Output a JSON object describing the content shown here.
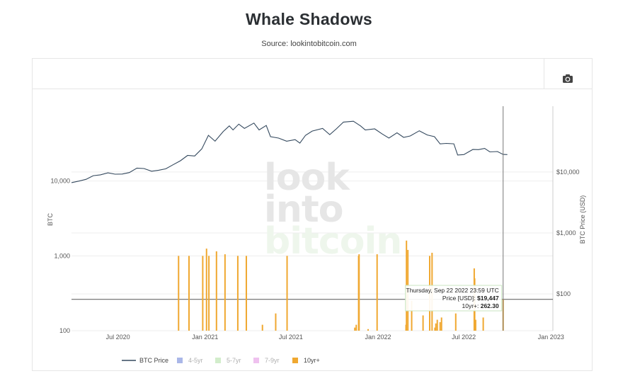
{
  "header": {
    "title": "Whale Shadows",
    "subtitle": "Source: lookintobitcoin.com"
  },
  "toolbar": {
    "camera_icon": "camera-icon"
  },
  "watermark": {
    "line1": "look",
    "line2": "into",
    "line3": "bitcoin"
  },
  "chart_data": {
    "type": "line+bar",
    "x_axis": {
      "type": "date",
      "range": [
        "2020-03-25",
        "2023-01-05"
      ],
      "ticks": [
        {
          "date": "2020-07-01",
          "label": "Jul 2020"
        },
        {
          "date": "2021-01-01",
          "label": "Jan 2021"
        },
        {
          "date": "2021-07-01",
          "label": "Jul 2021"
        },
        {
          "date": "2022-01-01",
          "label": "Jan 2022"
        },
        {
          "date": "2022-07-01",
          "label": "Jul 2022"
        },
        {
          "date": "2023-01-01",
          "label": "Jan 2023"
        }
      ]
    },
    "y_axis_left": {
      "title": "BTC",
      "scale": "log",
      "range": [
        100,
        100000
      ],
      "ticks": [
        {
          "value": 100,
          "label": "100"
        },
        {
          "value": 1000,
          "label": "1,000"
        },
        {
          "value": 10000,
          "label": "10,000"
        }
      ]
    },
    "y_axis_right": {
      "title": "BTC Price (USD)",
      "scale": "log",
      "range": [
        25,
        120000
      ],
      "ticks": [
        {
          "value": 100,
          "label": "$100"
        },
        {
          "value": 1000,
          "label": "$1,000"
        },
        {
          "value": 10000,
          "label": "$10,000"
        }
      ]
    },
    "series_price": {
      "name": "BTC Price",
      "color": "#34495e",
      "points": [
        [
          "2020-03-25",
          6700
        ],
        [
          "2020-04-10",
          7100
        ],
        [
          "2020-04-25",
          7600
        ],
        [
          "2020-05-10",
          8700
        ],
        [
          "2020-05-25",
          9000
        ],
        [
          "2020-06-10",
          9700
        ],
        [
          "2020-06-25",
          9200
        ],
        [
          "2020-07-10",
          9250
        ],
        [
          "2020-07-25",
          9800
        ],
        [
          "2020-08-10",
          11600
        ],
        [
          "2020-08-25",
          11400
        ],
        [
          "2020-09-10",
          10300
        ],
        [
          "2020-09-25",
          10700
        ],
        [
          "2020-10-10",
          11300
        ],
        [
          "2020-10-25",
          13100
        ],
        [
          "2020-11-10",
          15300
        ],
        [
          "2020-11-25",
          18700
        ],
        [
          "2020-12-10",
          18300
        ],
        [
          "2020-12-25",
          24000
        ],
        [
          "2021-01-08",
          40000
        ],
        [
          "2021-01-22",
          32000
        ],
        [
          "2021-02-08",
          46000
        ],
        [
          "2021-02-21",
          57000
        ],
        [
          "2021-03-01",
          49000
        ],
        [
          "2021-03-13",
          61000
        ],
        [
          "2021-03-25",
          52000
        ],
        [
          "2021-04-14",
          63500
        ],
        [
          "2021-04-25",
          49000
        ],
        [
          "2021-05-10",
          58000
        ],
        [
          "2021-05-19",
          38000
        ],
        [
          "2021-06-05",
          36000
        ],
        [
          "2021-06-22",
          32000
        ],
        [
          "2021-07-10",
          34000
        ],
        [
          "2021-07-20",
          29800
        ],
        [
          "2021-08-01",
          40000
        ],
        [
          "2021-08-15",
          47000
        ],
        [
          "2021-09-06",
          52000
        ],
        [
          "2021-09-21",
          41000
        ],
        [
          "2021-10-05",
          51000
        ],
        [
          "2021-10-20",
          66000
        ],
        [
          "2021-11-10",
          68000
        ],
        [
          "2021-11-25",
          57000
        ],
        [
          "2021-12-05",
          49000
        ],
        [
          "2021-12-25",
          51000
        ],
        [
          "2022-01-10",
          42000
        ],
        [
          "2022-01-24",
          36000
        ],
        [
          "2022-02-10",
          44000
        ],
        [
          "2022-02-24",
          37000
        ],
        [
          "2022-03-10",
          39000
        ],
        [
          "2022-03-29",
          47500
        ],
        [
          "2022-04-15",
          40500
        ],
        [
          "2022-04-30",
          38000
        ],
        [
          "2022-05-12",
          28900
        ],
        [
          "2022-05-25",
          29500
        ],
        [
          "2022-06-10",
          29000
        ],
        [
          "2022-06-18",
          19000
        ],
        [
          "2022-07-01",
          19300
        ],
        [
          "2022-07-20",
          23400
        ],
        [
          "2022-08-01",
          23300
        ],
        [
          "2022-08-14",
          24400
        ],
        [
          "2022-08-25",
          21400
        ],
        [
          "2022-09-10",
          21700
        ],
        [
          "2022-09-22",
          19447
        ],
        [
          "2022-10-01",
          19300
        ]
      ]
    },
    "series_bars": [
      {
        "name": "4-5yr",
        "color": "#aab7e8",
        "values": []
      },
      {
        "name": "5-7yr",
        "color": "#d2edcb",
        "values": []
      },
      {
        "name": "7-9yr",
        "color": "#efc1ef",
        "values": []
      },
      {
        "name": "10yr+",
        "color": "#f0a830",
        "values": [
          [
            "2020-11-06",
            1000
          ],
          [
            "2020-11-28",
            1000
          ],
          [
            "2020-12-27",
            1000
          ],
          [
            "2021-01-04",
            1250
          ],
          [
            "2021-01-09",
            1000
          ],
          [
            "2021-01-25",
            1150
          ],
          [
            "2021-02-12",
            1050
          ],
          [
            "2021-03-11",
            1000
          ],
          [
            "2021-03-29",
            1000
          ],
          [
            "2021-05-02",
            120
          ],
          [
            "2021-05-30",
            170
          ],
          [
            "2021-06-23",
            1000
          ],
          [
            "2021-11-13",
            110
          ],
          [
            "2021-11-16",
            120
          ],
          [
            "2021-11-21",
            1000
          ],
          [
            "2021-11-22",
            1050
          ],
          [
            "2021-12-11",
            105
          ],
          [
            "2021-12-30",
            1050
          ],
          [
            "2022-02-29",
            120
          ],
          [
            "2022-03-02",
            1600
          ],
          [
            "2022-03-05",
            1200
          ],
          [
            "2022-03-13",
            250
          ],
          [
            "2022-04-06",
            160
          ],
          [
            "2022-04-20",
            1000
          ],
          [
            "2022-04-25",
            1100
          ],
          [
            "2022-05-01",
            110
          ],
          [
            "2022-05-03",
            125
          ],
          [
            "2022-05-06",
            140
          ],
          [
            "2022-05-12",
            130
          ],
          [
            "2022-05-15",
            150
          ],
          [
            "2022-06-14",
            170
          ],
          [
            "2022-07-23",
            680
          ],
          [
            "2022-07-24",
            500
          ],
          [
            "2022-07-26",
            140
          ],
          [
            "2022-08-11",
            150
          ],
          [
            "2022-09-22",
            262.3
          ]
        ]
      }
    ],
    "hover": {
      "date": "2022-09-22",
      "horizontal_value": 262.3,
      "tooltip": {
        "line1": "Thursday, Sep 22 2022 23:59 UTC",
        "line2_label": "Price [USD]:",
        "line2_value": "$19,447",
        "line3_label": "10yr+:",
        "line3_value": "262.30"
      }
    },
    "legend": {
      "placement": "bottom"
    }
  }
}
